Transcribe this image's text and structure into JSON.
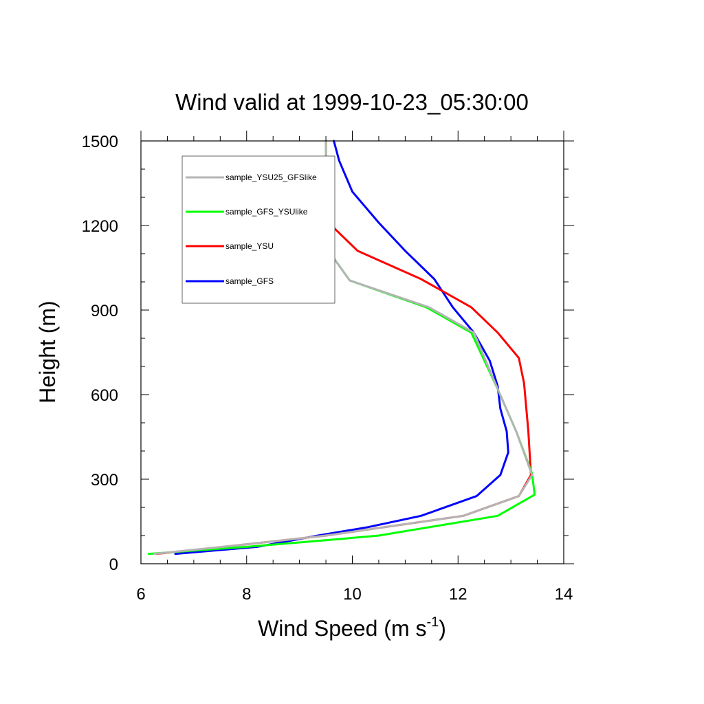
{
  "chart_data": {
    "type": "line",
    "title": "Wind valid at 1999-10-23_05:30:00",
    "xlabel": "Wind Speed (m s",
    "xlabel_sup": "-1",
    "xlabel_end": ")",
    "ylabel": "Height (m)",
    "xlim": [
      6,
      14
    ],
    "ylim": [
      0,
      1500
    ],
    "xticks": [
      "6",
      "8",
      "10",
      "12",
      "14"
    ],
    "yticks": [
      "0",
      "300",
      "600",
      "900",
      "1200",
      "1500"
    ],
    "grid": false,
    "legend_position": "top-left",
    "series": [
      {
        "name": "sample_YSU25_GFSlike",
        "color": "#b4b4b4",
        "x": [
          6.25,
          7.8,
          9.5,
          12.1,
          13.15,
          13.4,
          13.1,
          12.75,
          12.3,
          11.45,
          9.95,
          9.55,
          9.5,
          9.5,
          9.5
        ],
        "y": [
          35,
          65,
          100,
          170,
          240,
          315,
          470,
          620,
          820,
          910,
          1005,
          1110,
          1210,
          1350,
          1500
        ]
      },
      {
        "name": "sample_GFS_YSUlike",
        "color": "#00ff00",
        "x": [
          6.15,
          8.0,
          9.6,
          10.5,
          12.75,
          13.45,
          13.4,
          13.1,
          12.75,
          12.25,
          11.4,
          9.95,
          9.55,
          9.5,
          9.5,
          9.5
        ],
        "y": [
          35,
          60,
          85,
          100,
          170,
          245,
          320,
          470,
          620,
          820,
          910,
          1005,
          1110,
          1210,
          1350,
          1500
        ]
      },
      {
        "name": "sample_YSU",
        "color": "#ff0000",
        "x": [
          6.3,
          7.8,
          9.5,
          12.1,
          13.15,
          13.38,
          13.33,
          13.25,
          13.15,
          12.75,
          12.25,
          11.3,
          10.1,
          9.55,
          9.5,
          9.5
        ],
        "y": [
          35,
          65,
          100,
          170,
          240,
          315,
          470,
          640,
          730,
          820,
          910,
          1010,
          1110,
          1210,
          1300,
          1500
        ]
      },
      {
        "name": "sample_GFS",
        "color": "#0000ff",
        "x": [
          6.65,
          8.2,
          9.35,
          10.3,
          11.3,
          12.35,
          12.8,
          12.95,
          12.92,
          12.8,
          12.75,
          12.6,
          12.3,
          11.9,
          11.55,
          11.0,
          10.5,
          10.0,
          9.75,
          9.65
        ],
        "y": [
          35,
          60,
          100,
          130,
          170,
          240,
          315,
          395,
          470,
          550,
          630,
          720,
          820,
          910,
          1010,
          1110,
          1210,
          1320,
          1430,
          1500
        ]
      }
    ]
  }
}
